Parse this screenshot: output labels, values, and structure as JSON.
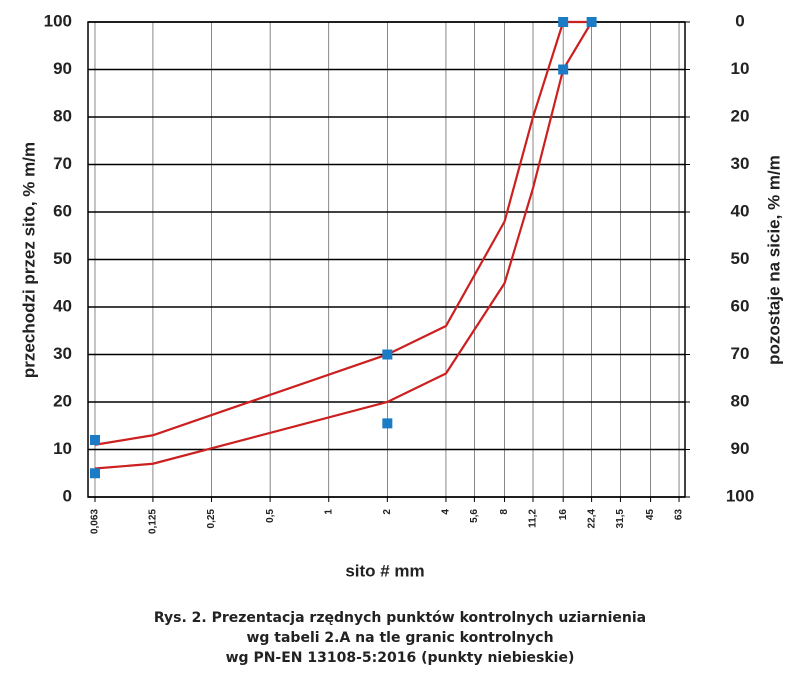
{
  "chart_data": {
    "type": "line",
    "ylabel": "przechodzi przez sito, % m/m",
    "y2label": "pozostaje na sicie, % m/m",
    "xlabel": "sito # mm",
    "caption": [
      "Rys. 2. Prezentacja rzędnych punktów kontrolnych uziarnienia",
      "wg tabeli 2.A na tle granic kontrolnych",
      "wg PN-EN 13108-5:2016 (punkty niebieskie)"
    ],
    "xscale": "log",
    "xlim": [
      0.058,
      67.6
    ],
    "xticks": [
      {
        "value": 0.063,
        "label": "0,063"
      },
      {
        "value": 0.125,
        "label": "0,125"
      },
      {
        "value": 0.25,
        "label": "0,25"
      },
      {
        "value": 0.5,
        "label": "0,5"
      },
      1,
      2,
      4,
      {
        "value": 5.6,
        "label": "5,6"
      },
      8,
      {
        "value": 11.2,
        "label": "11,2"
      },
      16,
      {
        "value": 22.4,
        "label": "22,4"
      },
      {
        "value": 31.5,
        "label": "31,5"
      },
      45,
      63
    ],
    "ylim": [
      0,
      100
    ],
    "yticks": [
      0,
      10,
      20,
      30,
      40,
      50,
      60,
      70,
      80,
      90,
      100
    ],
    "y2lim": [
      100,
      0
    ],
    "y2ticks": [
      0,
      10,
      20,
      30,
      40,
      50,
      60,
      70,
      80,
      90,
      100
    ],
    "grid": true,
    "series": [
      {
        "type": "line",
        "color": "#cc2020",
        "x": [
          0.063,
          0.125,
          2,
          4,
          8,
          11.2,
          16,
          22.4
        ],
        "values": [
          11,
          13,
          30,
          36,
          58,
          80,
          100,
          100
        ]
      },
      {
        "type": "line",
        "color": "#cc2020",
        "x": [
          0.063,
          0.125,
          2,
          4,
          8,
          11.2,
          16,
          22.4
        ],
        "values": [
          6,
          7,
          20,
          26,
          45,
          65,
          90,
          100
        ]
      },
      {
        "type": "scatter",
        "color": "#1b7bc4",
        "x": [
          0.063,
          0.063,
          2,
          2,
          16,
          16,
          22.4
        ],
        "values": [
          12,
          5,
          30,
          15.5,
          100,
          90,
          100
        ]
      }
    ]
  }
}
